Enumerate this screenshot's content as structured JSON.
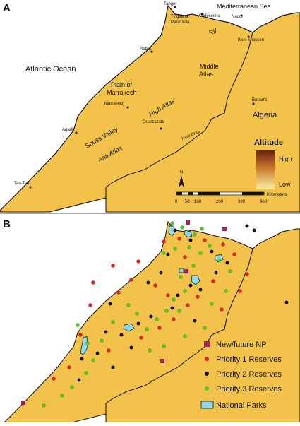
{
  "panel_a": {
    "letter": "A",
    "seas": {
      "mediterranean": "Mediterranean Sea",
      "atlantic": "Atlantic Ocean"
    },
    "country": "Algeria",
    "regions": {
      "plain_line1": "Plain of",
      "plain_line2": "Marrakech",
      "middle_line1": "Middle",
      "middle_line2": "Atlas",
      "high_atlas": "High Atlas",
      "anti_atlas": "Anti Atlas",
      "souss_valley": "Souss Valley",
      "rif": "Rif",
      "haut_draa": "Haut Draa",
      "tingitana_line1": "Tingitana",
      "tingitana_line2": "Peninsula"
    },
    "cities": {
      "tanger": "Tanger",
      "al_hoceima": "Al Hoceima",
      "nador": "Nador",
      "beni_snassen": "Beni Snassen",
      "rabat": "Rabat",
      "marrakech": "Marrakech",
      "ouarzazate": "Ouarzazate",
      "agadir": "Agadir",
      "bouarfa": "Bouarfa",
      "tan_tan": "Tan-Tan"
    },
    "legend": {
      "title": "Altitude",
      "high": "High",
      "low": "Low"
    },
    "north": "N",
    "scale": {
      "ticks": [
        "0",
        "50",
        "100",
        "200",
        "300",
        "400"
      ],
      "unit": "Kilometers"
    }
  },
  "panel_b": {
    "letter": "B",
    "legend": [
      {
        "label": "New/future NP",
        "color": "#a0205a",
        "icon": "square-marker"
      },
      {
        "label": "Priority 1 Reserves",
        "color": "#e8201a",
        "icon": "dot-marker"
      },
      {
        "label": "Priority 2 Reserves",
        "color": "#111111",
        "icon": "dot-marker"
      },
      {
        "label": "Priority 3 Reserves",
        "color": "#55cc22",
        "icon": "dot-marker"
      },
      {
        "label": "National Parks",
        "color": "#8fd8ee",
        "icon": "box-marker"
      }
    ]
  },
  "colors": {
    "lowland": "#f2c24a",
    "highland": "#7a2a14",
    "sea": "#ffffff",
    "national_park": "#8fd8ee"
  }
}
